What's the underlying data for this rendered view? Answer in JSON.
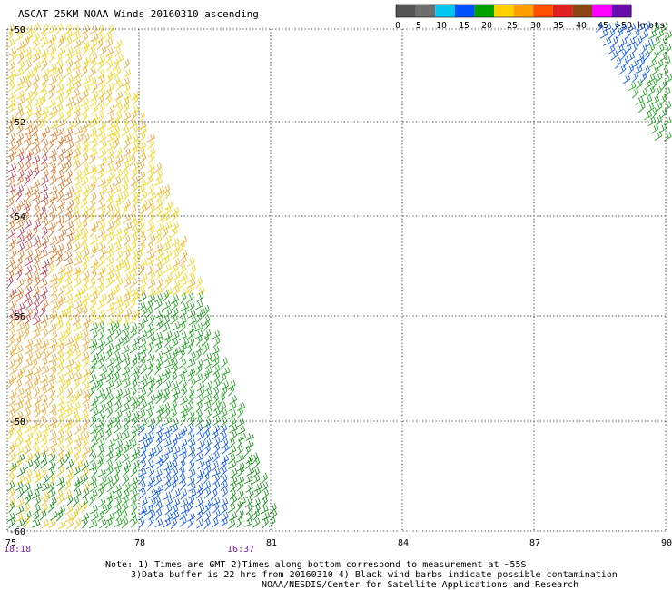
{
  "title": "ASCAT 25KM NOAA Winds 20160310 ascending",
  "legend": {
    "ticks": [
      "0",
      "5",
      "10",
      "15",
      "20",
      "25",
      "30",
      "35",
      "40",
      "45",
      ">50 knots"
    ],
    "colors": [
      "#555555",
      "#6e6e6e",
      "#00c8f0",
      "#0050ff",
      "#00a000",
      "#ffd000",
      "#ffa000",
      "#ff5000",
      "#e02020",
      "#8b4513",
      "#ff00ff",
      "#6a0dad"
    ]
  },
  "map": {
    "lat_labels": [
      "-50",
      "-52",
      "-54",
      "-56",
      "-58",
      "-60"
    ],
    "lon_labels": [
      "75",
      "78",
      "81",
      "84",
      "87",
      "90"
    ],
    "times": [
      "18:18",
      "16:37"
    ]
  },
  "notes": [
    "Note: 1) Times are GMT 2)Times along bottom correspond to measurement at ~55S",
    "3)Data buffer is 22 hrs from 20160310 4) Black wind barbs indicate possible contamination",
    "NOAA/NESDIS/Center for Satellite Applications and Research"
  ]
}
